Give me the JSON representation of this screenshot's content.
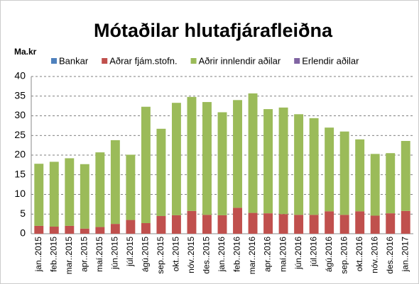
{
  "chart_data": {
    "type": "stacked_bar",
    "title": "Mótaðilar hlutafjárafleiðna",
    "y_label": "Ma.kr",
    "categories": [
      "jan..2015",
      "feb..2015",
      "mar..2015",
      "apr..2015",
      "maí.2015",
      "jún.2015",
      "júl.2015",
      "ágú.2015",
      "sep..2015",
      "okt..2015",
      "nóv..2015",
      "des..2015",
      "jan..2016",
      "feb..2016",
      "mar..2016",
      "apr..2016",
      "maí.2016",
      "jún.2016",
      "júl.2016",
      "ágú.2016",
      "sep..2016",
      "okt..2016",
      "nóv..2016",
      "des..2016",
      "jan..2017"
    ],
    "series": [
      {
        "name": "Bankar",
        "color": "#4f81bd",
        "values": [
          0,
          0,
          0,
          0,
          0,
          0,
          0,
          0,
          0,
          0,
          0,
          0,
          0,
          0,
          0,
          0,
          0,
          0,
          0,
          0,
          0,
          0,
          0,
          0,
          0
        ]
      },
      {
        "name": "Aðrar fjám.stofn.",
        "color": "#c0504d",
        "values": [
          2.0,
          1.8,
          2.0,
          1.3,
          1.7,
          2.5,
          3.5,
          2.7,
          4.5,
          4.7,
          5.8,
          4.8,
          4.7,
          6.6,
          5.3,
          5.2,
          5.0,
          4.8,
          4.8,
          5.7,
          4.8,
          5.7,
          4.6,
          5.2,
          5.8
        ]
      },
      {
        "name": "Aðrir innlendir aðilar",
        "color": "#9bbb59",
        "values": [
          15.8,
          16.5,
          17.2,
          16.4,
          19.0,
          21.3,
          16.6,
          29.6,
          22.2,
          28.6,
          29.0,
          28.7,
          26.2,
          27.4,
          30.4,
          26.5,
          27.1,
          25.6,
          24.6,
          21.3,
          21.2,
          18.3,
          15.7,
          15.3,
          17.8
        ]
      },
      {
        "name": "Erlendir aðilar",
        "color": "#8064a2",
        "values": [
          0,
          0,
          0,
          0,
          0,
          0,
          0,
          0,
          0,
          0,
          0,
          0,
          0,
          0,
          0,
          0,
          0,
          0,
          0,
          0,
          0,
          0,
          0,
          0,
          0
        ]
      }
    ],
    "ylim": [
      0,
      40
    ],
    "yticks": [
      0,
      5,
      10,
      15,
      20,
      25,
      30,
      35,
      40
    ],
    "grid": true,
    "legend": "top"
  }
}
